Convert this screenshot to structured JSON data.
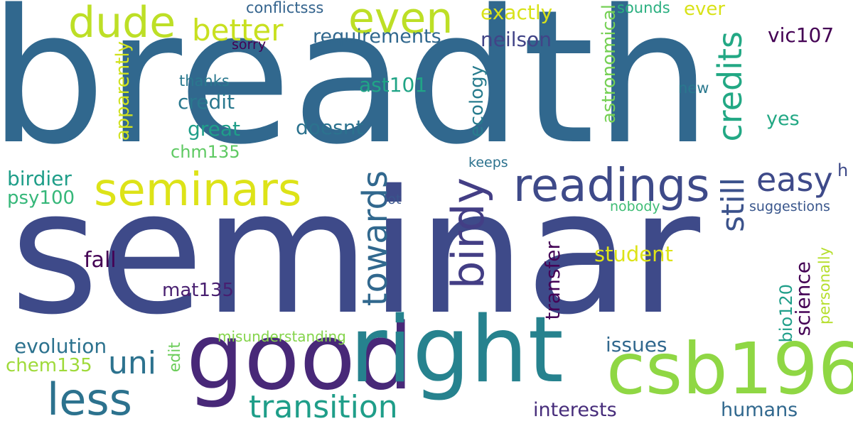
{
  "words": [
    {
      "text": "breadth",
      "color": "#31688e"
    },
    {
      "text": "seminar",
      "color": "#3e4a89"
    },
    {
      "text": "good",
      "color": "#482878"
    },
    {
      "text": "right",
      "color": "#26828e"
    },
    {
      "text": "csb196",
      "color": "#8fd744"
    },
    {
      "text": "seminars",
      "color": "#dde318"
    },
    {
      "text": "readings",
      "color": "#3e4a89"
    },
    {
      "text": "birdy",
      "color": "#433e85"
    },
    {
      "text": "towards",
      "color": "#31688e"
    },
    {
      "text": "dude",
      "color": "#bddf26"
    },
    {
      "text": "even",
      "color": "#bddf26"
    },
    {
      "text": "better",
      "color": "#c8e020"
    },
    {
      "text": "less",
      "color": "#2c728e"
    },
    {
      "text": "transition",
      "color": "#1f9e89"
    },
    {
      "text": "uni",
      "color": "#2c728e"
    },
    {
      "text": "credits",
      "color": "#22a884"
    },
    {
      "text": "still",
      "color": "#3b528b"
    },
    {
      "text": "easy",
      "color": "#3e4a89"
    },
    {
      "text": "requirements",
      "color": "#31688e"
    },
    {
      "text": "neilson",
      "color": "#414487"
    },
    {
      "text": "exactly",
      "color": "#d8e219"
    },
    {
      "text": "ever",
      "color": "#d8e219"
    },
    {
      "text": "conflictsss",
      "color": "#33638d"
    },
    {
      "text": "sounds",
      "color": "#29af7f"
    },
    {
      "text": "vic107",
      "color": "#440154"
    },
    {
      "text": "sorry",
      "color": "#440154"
    },
    {
      "text": "astronomical",
      "color": "#75d054"
    },
    {
      "text": "apparently",
      "color": "#d0e11c"
    },
    {
      "text": "thanks",
      "color": "#2a788e"
    },
    {
      "text": "ast101",
      "color": "#20a486"
    },
    {
      "text": "credit",
      "color": "#2a788e"
    },
    {
      "text": "doesnt",
      "color": "#2c728e"
    },
    {
      "text": "ecology",
      "color": "#287c8e"
    },
    {
      "text": "new",
      "color": "#2a788e"
    },
    {
      "text": "yes",
      "color": "#22a884"
    },
    {
      "text": "great",
      "color": "#1f9e89"
    },
    {
      "text": "chm135",
      "color": "#5ec962"
    },
    {
      "text": "keeps",
      "color": "#2c728e"
    },
    {
      "text": "birdier",
      "color": "#1f9e89"
    },
    {
      "text": "psy100",
      "color": "#35b779"
    },
    {
      "text": "lot",
      "color": "#39568c"
    },
    {
      "text": "nobody",
      "color": "#3dbc74"
    },
    {
      "text": "suggestions",
      "color": "#39568c"
    },
    {
      "text": "h",
      "color": "#3e4a89"
    },
    {
      "text": "fall",
      "color": "#440154"
    },
    {
      "text": "student",
      "color": "#dde318"
    },
    {
      "text": "transfer",
      "color": "#450457"
    },
    {
      "text": "mat135",
      "color": "#481f70"
    },
    {
      "text": "science",
      "color": "#440154"
    },
    {
      "text": "bio120",
      "color": "#1f9e89"
    },
    {
      "text": "personally",
      "color": "#b5de2b"
    },
    {
      "text": "misunderstanding",
      "color": "#84d44b"
    },
    {
      "text": "evolution",
      "color": "#2c728e"
    },
    {
      "text": "issues",
      "color": "#31688e"
    },
    {
      "text": "chem135",
      "color": "#9fda3a"
    },
    {
      "text": "edit",
      "color": "#6ccd5a"
    },
    {
      "text": "interests",
      "color": "#472d7b"
    },
    {
      "text": "humans",
      "color": "#31688e"
    }
  ]
}
